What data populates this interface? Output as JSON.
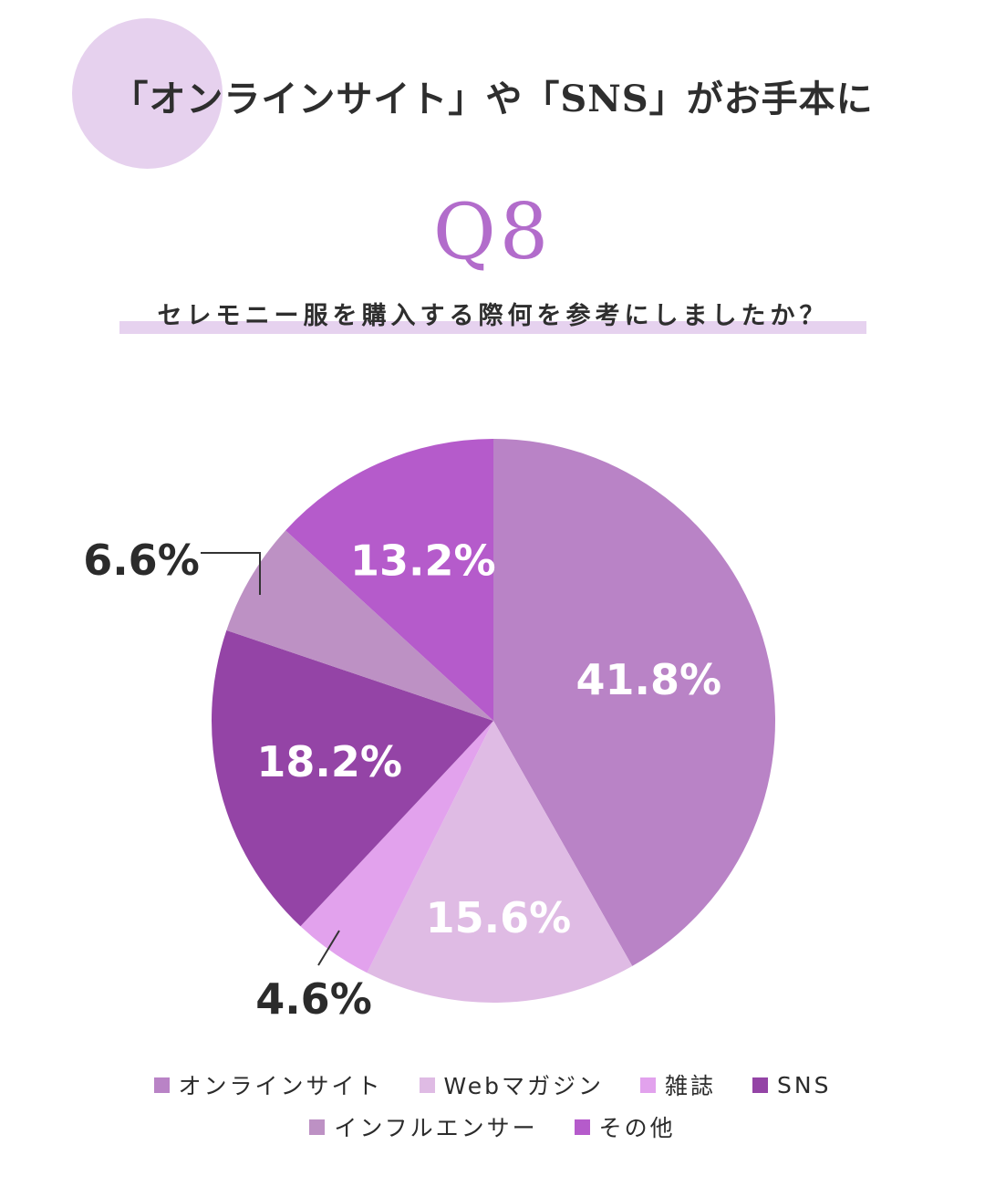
{
  "header": {
    "headline": "「オンラインサイト」や「SNS」がお手本に",
    "question_number": "Q8",
    "question": "セレモニー服を購入する際何を参考にしましたか？"
  },
  "colors": {
    "deco_circle": "#e6d1ee",
    "question_bar": "#e6d2ef",
    "accent": "#b26ccb"
  },
  "chart_data": {
    "type": "pie",
    "title": "",
    "start_angle_deg": 0,
    "direction": "clockwise",
    "slices": [
      {
        "label": "オンラインサイト",
        "value": 41.8,
        "display": "41.8%",
        "color": "#b983c6"
      },
      {
        "label": "Webマガジン",
        "value": 15.6,
        "display": "15.6%",
        "color": "#dfbbe4"
      },
      {
        "label": "雑誌",
        "value": 4.6,
        "display": "4.6%",
        "color": "#e2a2ed"
      },
      {
        "label": "SNS",
        "value": 18.2,
        "display": "18.2%",
        "color": "#9444a6"
      },
      {
        "label": "インフルエンサー",
        "value": 6.6,
        "display": "6.6%",
        "color": "#bd91c4"
      },
      {
        "label": "その他",
        "value": 13.2,
        "display": "13.2%",
        "color": "#b55bcb"
      }
    ],
    "legend": {
      "placement": "bottom",
      "rows": [
        [
          "オンラインサイト",
          "Webマガジン",
          "雑誌",
          "SNS"
        ],
        [
          "インフルエンサー",
          "その他"
        ]
      ]
    }
  }
}
